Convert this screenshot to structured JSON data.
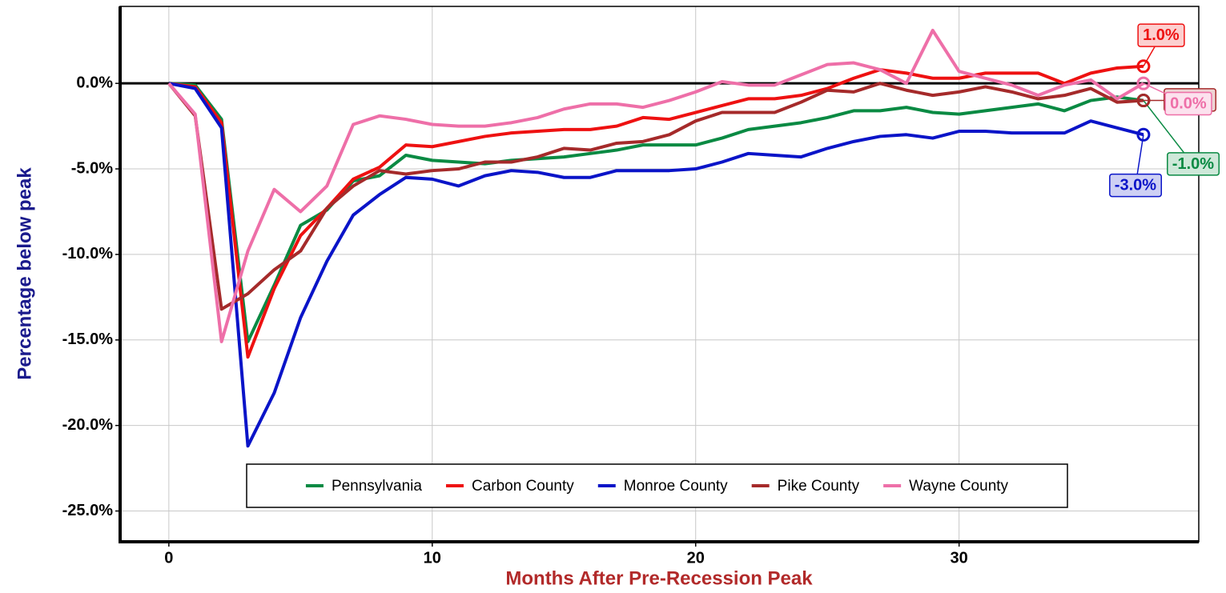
{
  "chart_data": {
    "type": "line",
    "xlabel": "Months After Pre-Recession Peak",
    "ylabel": "Percentage below peak",
    "x": [
      0,
      1,
      2,
      3,
      4,
      5,
      6,
      7,
      8,
      9,
      10,
      11,
      12,
      13,
      14,
      15,
      16,
      17,
      18,
      19,
      20,
      21,
      22,
      23,
      24,
      25,
      26,
      27,
      28,
      29,
      30,
      31,
      32,
      33,
      34,
      35,
      36,
      37
    ],
    "xlim": [
      -1.85,
      39.1
    ],
    "xticks": [
      0,
      10,
      20,
      30
    ],
    "ylim": [
      -26.8,
      4.5
    ],
    "yticks": [
      {
        "value": 0,
        "label": "0.0%"
      },
      {
        "value": -5,
        "label": "-5.0%"
      },
      {
        "value": -10,
        "label": "-10.0%"
      },
      {
        "value": -15,
        "label": "-15.0%"
      },
      {
        "value": -20,
        "label": "-20.0%"
      },
      {
        "value": -25,
        "label": "-25.0%"
      }
    ],
    "grid": true,
    "legend": "lower center",
    "series": [
      {
        "name": "Pennsylvania",
        "color": "#0a8a43",
        "values": [
          0,
          -0.1,
          -2.1,
          -15.1,
          -11.8,
          -8.3,
          -7.4,
          -5.7,
          -5.4,
          -4.2,
          -4.5,
          -4.6,
          -4.7,
          -4.5,
          -4.4,
          -4.3,
          -4.1,
          -3.9,
          -3.6,
          -3.6,
          -3.6,
          -3.2,
          -2.7,
          -2.5,
          -2.3,
          -2.0,
          -1.6,
          -1.6,
          -1.4,
          -1.7,
          -1.8,
          -1.6,
          -1.4,
          -1.2,
          -1.6,
          -1.0,
          -0.8,
          -1.0
        ],
        "value_labels": [
          null,
          null,
          null,
          null,
          null,
          null,
          null,
          null,
          null,
          null,
          null,
          null,
          null,
          null,
          null,
          null,
          null,
          null,
          null,
          null,
          null,
          null,
          null,
          null,
          null,
          null,
          null,
          null,
          null,
          null,
          null,
          null,
          null,
          null,
          null,
          null,
          null,
          "-1.0%"
        ]
      },
      {
        "name": "Carbon County",
        "color": "#ee1111",
        "values": [
          0,
          -0.2,
          -2.3,
          -16.0,
          -12.0,
          -8.9,
          -7.3,
          -5.6,
          -4.9,
          -3.6,
          -3.7,
          -3.4,
          -3.1,
          -2.9,
          -2.8,
          -2.7,
          -2.7,
          -2.5,
          -2.0,
          -2.1,
          -1.7,
          -1.3,
          -0.9,
          -0.9,
          -0.7,
          -0.3,
          0.3,
          0.8,
          0.6,
          0.3,
          0.3,
          0.6,
          0.6,
          0.6,
          0.0,
          0.6,
          0.9,
          1.0
        ],
        "value_labels": [
          null,
          null,
          null,
          null,
          null,
          null,
          null,
          null,
          null,
          null,
          null,
          null,
          null,
          null,
          null,
          null,
          null,
          null,
          null,
          null,
          null,
          null,
          null,
          null,
          null,
          null,
          null,
          null,
          null,
          null,
          null,
          null,
          null,
          null,
          null,
          null,
          null,
          "1.0%"
        ]
      },
      {
        "name": "Monroe County",
        "color": "#0a14c8",
        "values": [
          0,
          -0.3,
          -2.6,
          -21.2,
          -18.1,
          -13.7,
          -10.4,
          -7.7,
          -6.5,
          -5.5,
          -5.6,
          -6.0,
          -5.4,
          -5.1,
          -5.2,
          -5.5,
          -5.5,
          -5.1,
          -5.1,
          -5.1,
          -5.0,
          -4.6,
          -4.1,
          -4.2,
          -4.3,
          -3.8,
          -3.4,
          -3.1,
          -3.0,
          -3.2,
          -2.8,
          -2.8,
          -2.9,
          -2.9,
          -2.9,
          -2.2,
          -2.6,
          -3.0
        ],
        "value_labels": [
          null,
          null,
          null,
          null,
          null,
          null,
          null,
          null,
          null,
          null,
          null,
          null,
          null,
          null,
          null,
          null,
          null,
          null,
          null,
          null,
          null,
          null,
          null,
          null,
          null,
          null,
          null,
          null,
          null,
          null,
          null,
          null,
          null,
          null,
          null,
          null,
          null,
          "-3.0%"
        ]
      },
      {
        "name": "Pike County",
        "color": "#a52a2a",
        "values": [
          0,
          -1.9,
          -13.2,
          -12.3,
          -10.9,
          -9.8,
          -7.3,
          -6.0,
          -5.1,
          -5.3,
          -5.1,
          -5.0,
          -4.6,
          -4.6,
          -4.3,
          -3.8,
          -3.9,
          -3.5,
          -3.4,
          -3.0,
          -2.2,
          -1.7,
          -1.7,
          -1.7,
          -1.1,
          -0.4,
          -0.5,
          0.0,
          -0.4,
          -0.7,
          -0.5,
          -0.2,
          -0.5,
          -0.9,
          -0.7,
          -0.3,
          -1.1,
          -1.0
        ],
        "value_labels": [
          null,
          null,
          null,
          null,
          null,
          null,
          null,
          null,
          null,
          null,
          null,
          null,
          null,
          null,
          null,
          null,
          null,
          null,
          null,
          null,
          null,
          null,
          null,
          null,
          null,
          null,
          null,
          null,
          null,
          null,
          null,
          null,
          null,
          null,
          null,
          null,
          null,
          "-1.0%"
        ]
      },
      {
        "name": "Wayne County",
        "color": "#ee6fa8",
        "values": [
          0,
          -1.8,
          -15.1,
          -9.8,
          -6.2,
          -7.5,
          -6.0,
          -2.4,
          -1.9,
          -2.1,
          -2.4,
          -2.5,
          -2.5,
          -2.3,
          -2.0,
          -1.5,
          -1.2,
          -1.2,
          -1.4,
          -1.0,
          -0.5,
          0.1,
          -0.1,
          -0.1,
          0.5,
          1.1,
          1.2,
          0.8,
          0.0,
          3.1,
          0.7,
          0.3,
          -0.1,
          -0.7,
          -0.1,
          0.2,
          -0.9,
          0.0
        ],
        "value_labels": [
          null,
          null,
          null,
          null,
          null,
          null,
          null,
          null,
          null,
          null,
          null,
          null,
          null,
          null,
          null,
          null,
          null,
          null,
          null,
          null,
          null,
          null,
          null,
          null,
          null,
          null,
          null,
          null,
          null,
          null,
          null,
          null,
          null,
          null,
          null,
          null,
          null,
          "0.0%"
        ]
      }
    ]
  }
}
